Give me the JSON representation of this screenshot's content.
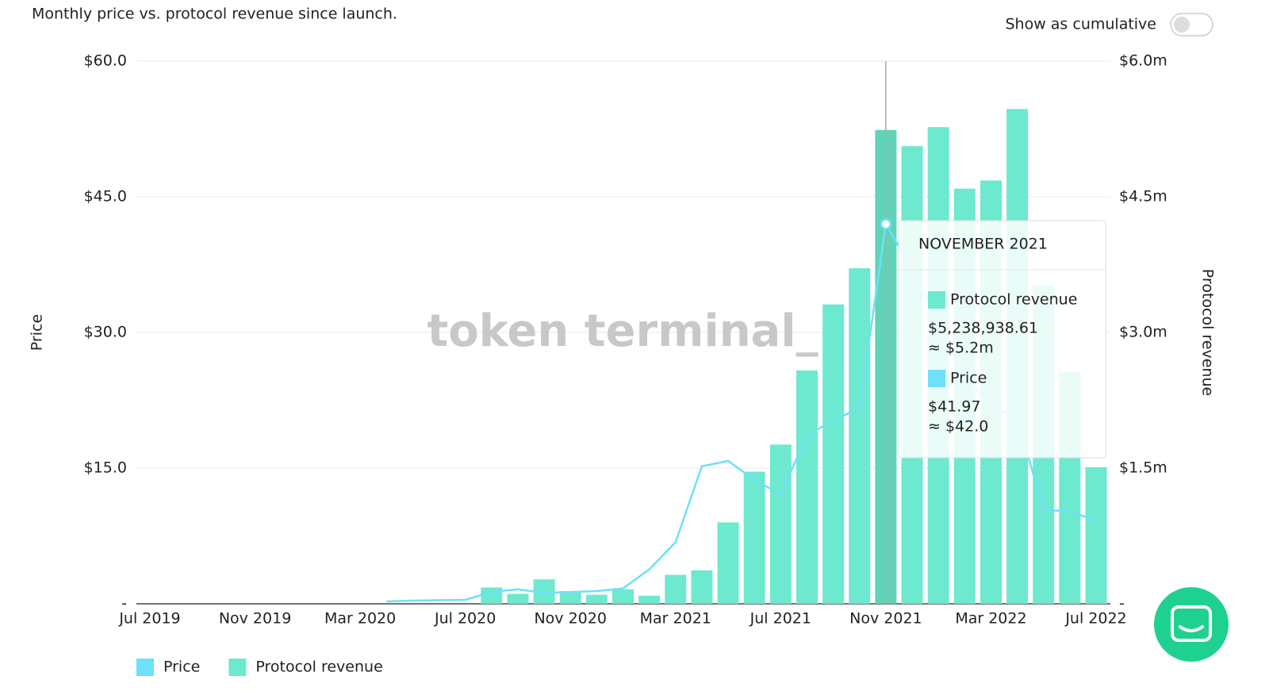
{
  "subtitle": "Monthly price vs. protocol revenue since launch.",
  "toggle_label": "Show as cumulative",
  "watermark": "token terminal_",
  "chart_data": {
    "type": "bar-line",
    "ylabel": "Price",
    "y2label": "Protocol revenue",
    "categories": [
      "Jul 2019",
      null,
      null,
      null,
      "Nov 2019",
      null,
      null,
      null,
      "Mar 2020",
      null,
      null,
      null,
      "Jul 2020",
      null,
      null,
      null,
      "Nov 2020",
      null,
      null,
      null,
      "Mar 2021",
      null,
      null,
      null,
      "Jul 2021",
      null,
      null,
      null,
      "Nov 2021",
      null,
      null,
      null,
      "Mar 2022",
      null,
      null,
      null,
      "Jul 2022"
    ],
    "series": [
      {
        "name": "Price",
        "kind": "line",
        "axis": "y",
        "color": "#6ee0f7",
        "values": [
          null,
          null,
          null,
          null,
          null,
          null,
          null,
          null,
          null,
          0.26,
          0.35,
          0.4,
          0.44,
          1.3,
          1.6,
          1.2,
          1.3,
          1.4,
          1.7,
          3.8,
          6.8,
          15.2,
          15.8,
          13.7,
          12.1,
          18.6,
          20.3,
          21.6,
          41.97,
          37,
          31,
          25,
          22,
          20.5,
          10.4,
          10.2,
          9.2
        ]
      },
      {
        "name": "Protocol revenue",
        "kind": "bar",
        "axis": "y2",
        "color": "#6de9cf",
        "highlight_color": "#5fd4b8",
        "values": [
          null,
          null,
          null,
          null,
          null,
          null,
          null,
          null,
          null,
          null,
          null,
          null,
          null,
          180000,
          110000,
          270000,
          140000,
          100000,
          160000,
          90000,
          320000,
          370000,
          900000,
          1460000,
          1760000,
          2580000,
          3310000,
          3710000,
          5238938.61,
          5060000,
          5270000,
          4590000,
          4680000,
          5470000,
          3520000,
          2560000,
          1510000
        ]
      }
    ],
    "ylim": [
      0,
      60
    ],
    "yticks": [
      {
        "value": 0,
        "label": "-"
      },
      {
        "value": 15,
        "label": "$15.0"
      },
      {
        "value": 30,
        "label": "$30.0"
      },
      {
        "value": 45,
        "label": "$45.0"
      },
      {
        "value": 60,
        "label": "$60.0"
      }
    ],
    "y2lim": [
      0,
      6000000
    ],
    "y2ticks": [
      {
        "value": 0,
        "label": "-"
      },
      {
        "value": 1500000,
        "label": "$1.5m"
      },
      {
        "value": 3000000,
        "label": "$3.0m"
      },
      {
        "value": 4500000,
        "label": "$4.5m"
      },
      {
        "value": 6000000,
        "label": "$6.0m"
      }
    ],
    "grid": true,
    "legend": "bottom-left",
    "hover_index": 28,
    "tooltip": {
      "title": "NOVEMBER 2021",
      "items": [
        {
          "value": "$5,238,938.61",
          "approx": "≈ $5.2m"
        },
        {
          "value": "$41.97",
          "approx": "≈ $42.0"
        }
      ]
    }
  }
}
